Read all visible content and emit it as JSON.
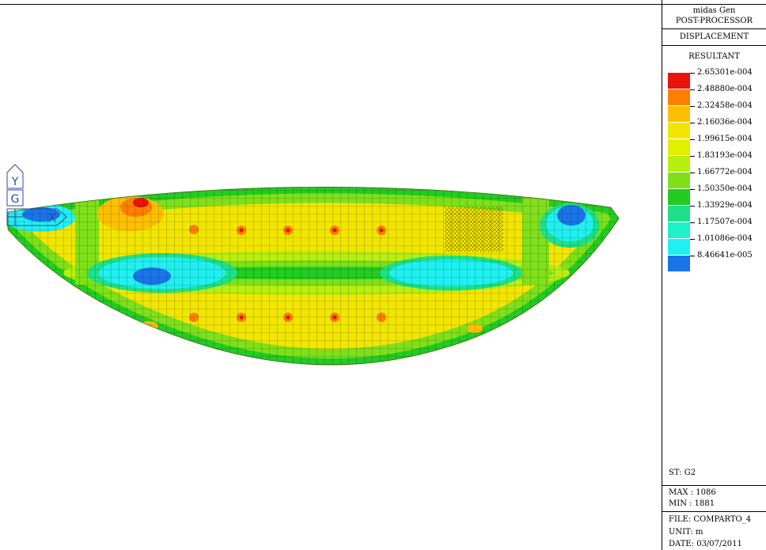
{
  "panel": {
    "program": "midas Gen",
    "module": "POST-PROCESSOR",
    "result_type": "DISPLACEMENT",
    "component": "RESULTANT"
  },
  "legend": [
    {
      "value": "2.65301e-004",
      "color": "#e8140c"
    },
    {
      "value": "2.48880e-004",
      "color": "#ff7f00"
    },
    {
      "value": "2.32458e-004",
      "color": "#ffbf00"
    },
    {
      "value": "2.16036e-004",
      "color": "#f2e600"
    },
    {
      "value": "1.99615e-004",
      "color": "#e0f000"
    },
    {
      "value": "1.83193e-004",
      "color": "#b8ee10"
    },
    {
      "value": "1.66772e-004",
      "color": "#7fe01a"
    },
    {
      "value": "1.50350e-004",
      "color": "#22cc22"
    },
    {
      "value": "1.33929e-004",
      "color": "#1ee088"
    },
    {
      "value": "1.17507e-004",
      "color": "#1ef0c8"
    },
    {
      "value": "1.01086e-004",
      "color": "#22f0f0"
    },
    {
      "value": "8.46641e-005",
      "color": "#1a74e8"
    }
  ],
  "info": {
    "stage": "ST: G2",
    "max": "MAX : 1086",
    "min": "MIN : 1881",
    "file": "FILE: COMPARTO_4",
    "unit": "UNIT: m",
    "date": "DATE: 03/07/2011"
  },
  "axis_icon": {
    "y": "Y",
    "g": "G",
    "x": "X"
  }
}
